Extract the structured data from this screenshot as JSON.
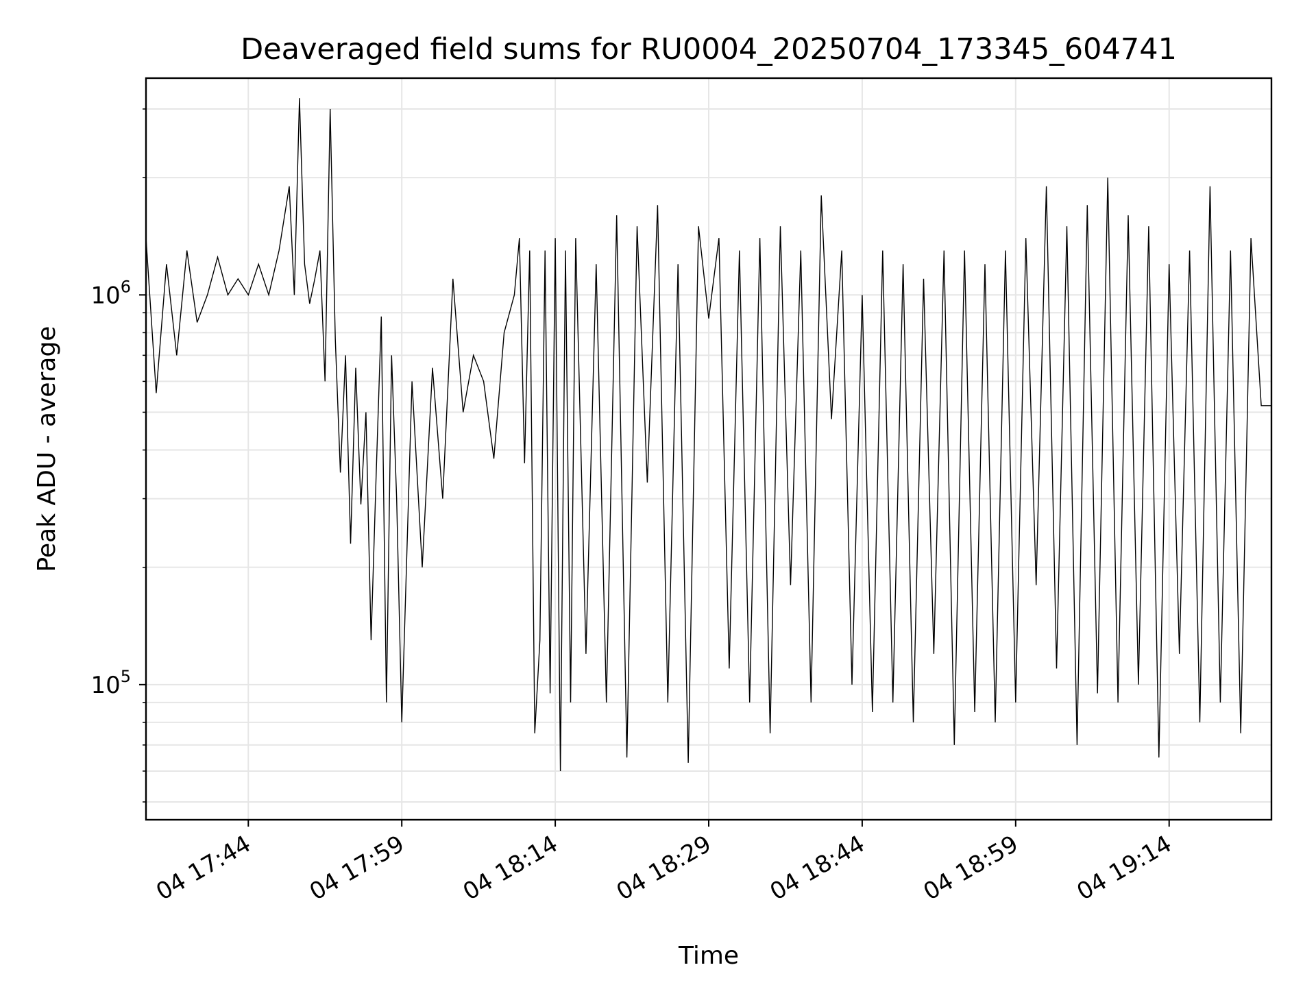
{
  "chart_data": {
    "type": "line",
    "title": "Deaveraged field sums for RU0004_20250704_173345_604741",
    "xlabel": "Time",
    "ylabel": "Peak ADU - average",
    "y_scale": "log",
    "ylim": [
      45000,
      3600000
    ],
    "xlim": [
      "2025-07-04 17:34",
      "2025-07-04 19:24"
    ],
    "grid": true,
    "line_color": "#000000",
    "grid_color": "#e6e6e6",
    "x_ticks": [
      {
        "value": "2025-07-04 17:44",
        "label": "04 17:44"
      },
      {
        "value": "2025-07-04 17:59",
        "label": "04 17:59"
      },
      {
        "value": "2025-07-04 18:14",
        "label": "04 18:14"
      },
      {
        "value": "2025-07-04 18:29",
        "label": "04 18:29"
      },
      {
        "value": "2025-07-04 18:44",
        "label": "04 18:44"
      },
      {
        "value": "2025-07-04 18:59",
        "label": "04 18:59"
      },
      {
        "value": "2025-07-04 19:14",
        "label": "04 19:14"
      }
    ],
    "y_ticks": [
      {
        "value": 100000,
        "base": "10",
        "exp": "5"
      },
      {
        "value": 1000000,
        "base": "10",
        "exp": "6"
      }
    ],
    "series": [
      {
        "x": [
          "2025-07-04 17:34:00",
          "2025-07-04 17:35:00",
          "2025-07-04 17:36:00",
          "2025-07-04 17:37:00",
          "2025-07-04 17:38:00",
          "2025-07-04 17:39:00",
          "2025-07-04 17:40:00",
          "2025-07-04 17:41:00",
          "2025-07-04 17:42:00",
          "2025-07-04 17:43:00",
          "2025-07-04 17:44:00",
          "2025-07-04 17:45:00",
          "2025-07-04 17:46:00",
          "2025-07-04 17:47:00",
          "2025-07-04 17:48:00",
          "2025-07-04 17:48:30",
          "2025-07-04 17:49:00",
          "2025-07-04 17:49:30",
          "2025-07-04 17:50:00",
          "2025-07-04 17:50:30",
          "2025-07-04 17:51:00",
          "2025-07-04 17:51:30",
          "2025-07-04 17:52:00",
          "2025-07-04 17:52:30",
          "2025-07-04 17:53:00",
          "2025-07-04 17:53:30",
          "2025-07-04 17:54:00",
          "2025-07-04 17:54:30",
          "2025-07-04 17:55:00",
          "2025-07-04 17:55:30",
          "2025-07-04 17:56:00",
          "2025-07-04 17:56:30",
          "2025-07-04 17:57:00",
          "2025-07-04 17:57:30",
          "2025-07-04 17:58:00",
          "2025-07-04 17:58:30",
          "2025-07-04 17:59:00",
          "2025-07-04 18:00:00",
          "2025-07-04 18:01:00",
          "2025-07-04 18:02:00",
          "2025-07-04 18:03:00",
          "2025-07-04 18:04:00",
          "2025-07-04 18:05:00",
          "2025-07-04 18:06:00",
          "2025-07-04 18:07:00",
          "2025-07-04 18:08:00",
          "2025-07-04 18:09:00",
          "2025-07-04 18:10:00",
          "2025-07-04 18:10:30",
          "2025-07-04 18:11:00",
          "2025-07-04 18:11:30",
          "2025-07-04 18:12:00",
          "2025-07-04 18:12:30",
          "2025-07-04 18:13:00",
          "2025-07-04 18:13:30",
          "2025-07-04 18:14:00",
          "2025-07-04 18:14:30",
          "2025-07-04 18:15:00",
          "2025-07-04 18:15:30",
          "2025-07-04 18:16:00",
          "2025-07-04 18:17:00",
          "2025-07-04 18:18:00",
          "2025-07-04 18:19:00",
          "2025-07-04 18:20:00",
          "2025-07-04 18:21:00",
          "2025-07-04 18:22:00",
          "2025-07-04 18:23:00",
          "2025-07-04 18:24:00",
          "2025-07-04 18:25:00",
          "2025-07-04 18:26:00",
          "2025-07-04 18:27:00",
          "2025-07-04 18:28:00",
          "2025-07-04 18:29:00",
          "2025-07-04 18:30:00",
          "2025-07-04 18:31:00",
          "2025-07-04 18:32:00",
          "2025-07-04 18:33:00",
          "2025-07-04 18:34:00",
          "2025-07-04 18:35:00",
          "2025-07-04 18:36:00",
          "2025-07-04 18:37:00",
          "2025-07-04 18:38:00",
          "2025-07-04 18:39:00",
          "2025-07-04 18:40:00",
          "2025-07-04 18:41:00",
          "2025-07-04 18:42:00",
          "2025-07-04 18:43:00",
          "2025-07-04 18:44:00",
          "2025-07-04 18:45:00",
          "2025-07-04 18:46:00",
          "2025-07-04 18:47:00",
          "2025-07-04 18:48:00",
          "2025-07-04 18:49:00",
          "2025-07-04 18:50:00",
          "2025-07-04 18:51:00",
          "2025-07-04 18:52:00",
          "2025-07-04 18:53:00",
          "2025-07-04 18:54:00",
          "2025-07-04 18:55:00",
          "2025-07-04 18:56:00",
          "2025-07-04 18:57:00",
          "2025-07-04 18:58:00",
          "2025-07-04 18:59:00",
          "2025-07-04 19:00:00",
          "2025-07-04 19:01:00",
          "2025-07-04 19:02:00",
          "2025-07-04 19:03:00",
          "2025-07-04 19:04:00",
          "2025-07-04 19:05:00",
          "2025-07-04 19:06:00",
          "2025-07-04 19:07:00",
          "2025-07-04 19:08:00",
          "2025-07-04 19:09:00",
          "2025-07-04 19:10:00",
          "2025-07-04 19:11:00",
          "2025-07-04 19:12:00",
          "2025-07-04 19:13:00",
          "2025-07-04 19:14:00",
          "2025-07-04 19:15:00",
          "2025-07-04 19:16:00",
          "2025-07-04 19:17:00",
          "2025-07-04 19:18:00",
          "2025-07-04 19:19:00",
          "2025-07-04 19:20:00",
          "2025-07-04 19:21:00",
          "2025-07-04 19:22:00",
          "2025-07-04 19:23:00",
          "2025-07-04 19:24:00"
        ],
        "y": [
          1400000,
          560000,
          1200000,
          700000,
          1300000,
          850000,
          1000000,
          1250000,
          1000000,
          1100000,
          1000000,
          1200000,
          1000000,
          1300000,
          1900000,
          1000000,
          3200000,
          1200000,
          950000,
          1100000,
          1300000,
          600000,
          3000000,
          770000,
          350000,
          700000,
          230000,
          650000,
          290000,
          500000,
          130000,
          350000,
          880000,
          90000,
          700000,
          300000,
          80000,
          600000,
          200000,
          650000,
          300000,
          1100000,
          500000,
          700000,
          600000,
          380000,
          800000,
          1000000,
          1400000,
          370000,
          1300000,
          75000,
          130000,
          1300000,
          95000,
          1400000,
          60000,
          1300000,
          90000,
          1400000,
          120000,
          1200000,
          90000,
          1600000,
          65000,
          1500000,
          330000,
          1700000,
          90000,
          1200000,
          63000,
          1500000,
          870000,
          1400000,
          110000,
          1300000,
          90000,
          1400000,
          75000,
          1500000,
          180000,
          1300000,
          90000,
          1800000,
          480000,
          1300000,
          100000,
          1000000,
          85000,
          1300000,
          90000,
          1200000,
          80000,
          1100000,
          120000,
          1300000,
          70000,
          1300000,
          85000,
          1200000,
          80000,
          1300000,
          90000,
          1400000,
          180000,
          1900000,
          110000,
          1500000,
          70000,
          1700000,
          95000,
          2000000,
          90000,
          1600000,
          100000,
          1500000,
          65000,
          1200000,
          120000,
          1300000,
          80000,
          1900000,
          90000,
          1300000,
          75000,
          1400000,
          520000,
          520000
        ]
      }
    ]
  }
}
